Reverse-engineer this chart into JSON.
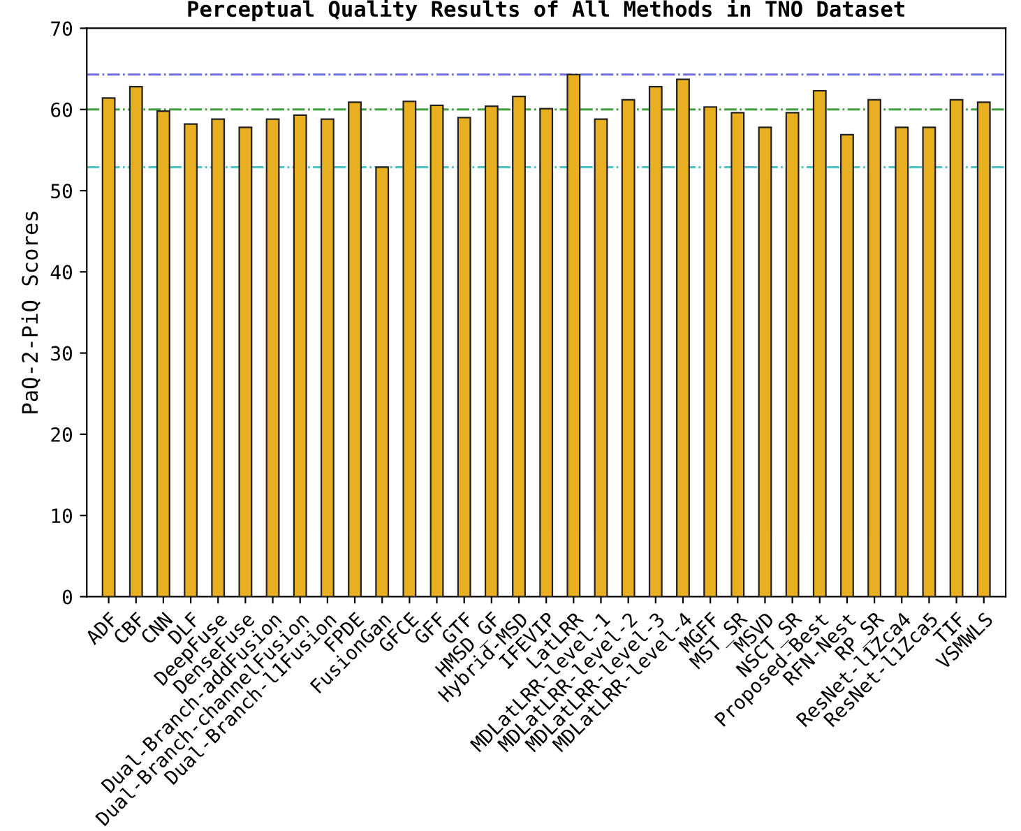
{
  "chart_data": {
    "type": "bar",
    "title": "Perceptual Quality Results of All Methods in TNO Dataset",
    "ylabel": "PaQ-2-PiQ Scores",
    "categories": [
      "ADF",
      "CBF",
      "CNN",
      "DLF",
      "DeepFuse",
      "DenseFuse",
      "Dual-Branch-addFusion",
      "Dual-Branch-channelFusion",
      "Dual-Branch-l1Fusion",
      "FPDE",
      "FusionGan",
      "GFCE",
      "GFF",
      "GTF",
      "HMSD_GF",
      "Hybrid-MSD",
      "IFEVIP",
      "LatLRR",
      "MDLatLRR-level-1",
      "MDLatLRR-level-2",
      "MDLatLRR-level-3",
      "MDLatLRR-level-4",
      "MGFF",
      "MST_SR",
      "MSVD",
      "NSCT_SR",
      "Proposed-Best",
      "RFN-Nest",
      "RP_SR",
      "ResNet-l1Zca4",
      "ResNet-l1Zca5",
      "TIF",
      "VSMWLS"
    ],
    "values": [
      61.4,
      62.8,
      59.8,
      58.2,
      58.8,
      57.8,
      58.8,
      59.3,
      58.8,
      60.9,
      52.9,
      61.0,
      60.5,
      59.0,
      60.4,
      61.6,
      60.1,
      64.3,
      58.8,
      61.2,
      62.8,
      63.7,
      60.3,
      59.6,
      57.8,
      59.6,
      62.3,
      56.9,
      61.2,
      57.8,
      57.8,
      61.2,
      60.9
    ],
    "color": "#e8b020",
    "ylim": [
      0,
      70
    ],
    "yticks": [
      0,
      10,
      20,
      30,
      40,
      50,
      60,
      70
    ],
    "grid": false,
    "ref_lines": [
      {
        "axis": "y",
        "value": 64.3,
        "color": "#7070e0",
        "line_style": "dashdot"
      },
      {
        "axis": "y",
        "value": 60,
        "color": "#40a040",
        "line_style": "dashdot"
      },
      {
        "axis": "y",
        "value": 52.9,
        "color": "#40c0c0",
        "line_style": "dashdot"
      }
    ]
  }
}
